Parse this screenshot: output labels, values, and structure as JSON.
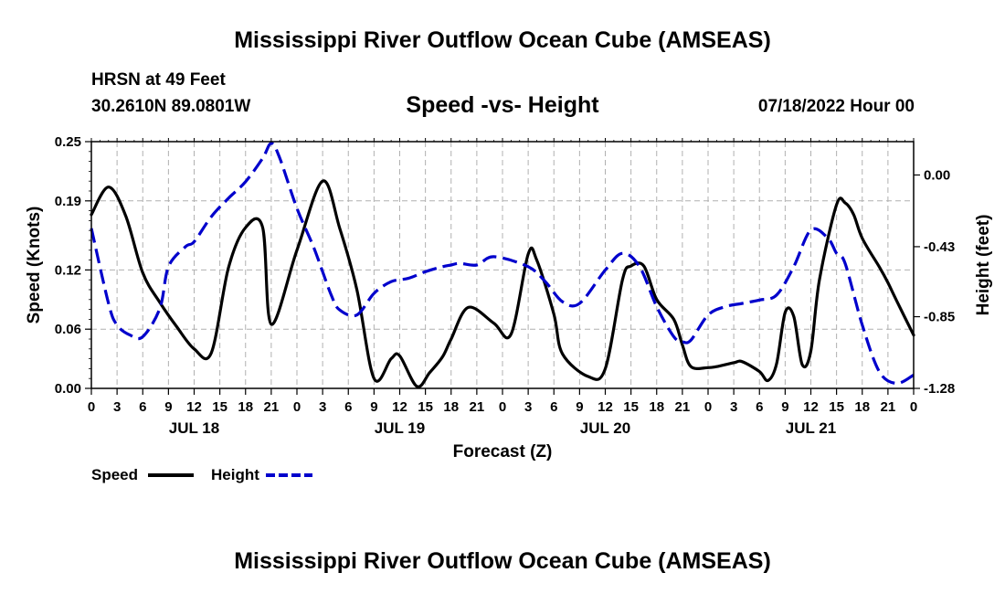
{
  "header": {
    "title": "Mississippi River Outflow Ocean Cube (AMSEAS)",
    "station_name": "HRSN at 49 Feet",
    "station_coords": "30.2610N  89.0801W",
    "subtitle": "Speed -vs- Height",
    "forecast_time": "07/18/2022 Hour 00"
  },
  "footer": {
    "title": "Mississippi River Outflow Ocean Cube (AMSEAS)"
  },
  "colors": {
    "speed": "#000000",
    "height": "#0000cc",
    "grid": "#b0b0b0"
  },
  "chart_data": {
    "type": "line",
    "title": "Speed -vs- Height",
    "xlabel": "Forecast (Z)",
    "ylabel": "Speed (Knots)",
    "y2label": "Height (feet)",
    "xlim": [
      0,
      96
    ],
    "ylim": [
      0,
      0.25
    ],
    "y2lim": [
      -1.28,
      0.2
    ],
    "x_ticks": [
      0,
      3,
      6,
      9,
      12,
      15,
      18,
      21,
      24,
      27,
      30,
      33,
      36,
      39,
      42,
      45,
      48,
      51,
      54,
      57,
      60,
      63,
      66,
      69,
      72,
      75,
      78,
      81,
      84,
      87,
      90,
      93,
      96
    ],
    "x_tick_labels": [
      "0",
      "3",
      "6",
      "9",
      "12",
      "15",
      "18",
      "21",
      "0",
      "3",
      "6",
      "9",
      "12",
      "15",
      "18",
      "21",
      "0",
      "3",
      "6",
      "9",
      "12",
      "15",
      "18",
      "21",
      "0",
      "3",
      "6",
      "9",
      "12",
      "15",
      "18",
      "21",
      "0"
    ],
    "day_labels": [
      {
        "x": 12,
        "label": "JUL 18"
      },
      {
        "x": 36,
        "label": "JUL 19"
      },
      {
        "x": 60,
        "label": "JUL 20"
      },
      {
        "x": 84,
        "label": "JUL 21"
      }
    ],
    "y_ticks": [
      0.0,
      0.06,
      0.12,
      0.19,
      0.25
    ],
    "y_tick_labels": [
      "0.00",
      "0.06",
      "0.12",
      "0.19",
      "0.25"
    ],
    "y2_ticks": [
      0.0,
      -0.43,
      -0.85,
      -1.28
    ],
    "y2_tick_labels": [
      "0.00",
      "-0.43",
      "-0.85",
      "-1.28"
    ],
    "grid": true,
    "legend": [
      {
        "name": "Speed",
        "style": "solid"
      },
      {
        "name": "Height",
        "style": "dashed"
      }
    ],
    "series": [
      {
        "name": "Speed",
        "axis": "left",
        "style": "solid",
        "x": [
          0,
          2,
          4,
          6,
          8,
          10,
          12,
          14,
          16,
          18,
          20,
          21,
          24,
          27,
          29,
          31,
          33,
          35,
          36,
          38,
          39.5,
          41,
          42,
          44,
          47,
          49,
          51,
          52,
          54,
          55,
          58,
          60,
          62,
          63,
          64.5,
          66,
          68,
          69,
          70,
          72,
          73,
          75,
          76,
          78,
          79,
          80,
          81,
          82,
          83,
          84,
          85,
          87,
          88,
          89,
          90,
          92,
          93,
          94,
          96
        ],
        "y": [
          0.176,
          0.204,
          0.175,
          0.117,
          0.087,
          0.062,
          0.04,
          0.036,
          0.122,
          0.163,
          0.163,
          0.065,
          0.14,
          0.21,
          0.162,
          0.1,
          0.01,
          0.03,
          0.033,
          0.002,
          0.016,
          0.032,
          0.05,
          0.082,
          0.066,
          0.055,
          0.136,
          0.13,
          0.075,
          0.035,
          0.012,
          0.02,
          0.11,
          0.124,
          0.124,
          0.09,
          0.07,
          0.044,
          0.022,
          0.021,
          0.022,
          0.026,
          0.027,
          0.017,
          0.008,
          0.025,
          0.077,
          0.073,
          0.024,
          0.038,
          0.11,
          0.186,
          0.188,
          0.176,
          0.152,
          0.123,
          0.107,
          0.089,
          0.054
        ]
      },
      {
        "name": "Height",
        "axis": "right",
        "style": "dashed",
        "x": [
          0,
          2,
          3,
          4.5,
          6,
          8,
          9,
          11,
          12,
          14,
          16,
          18,
          20,
          21,
          22,
          24,
          26,
          28,
          29,
          31,
          33,
          35,
          37,
          39,
          41,
          42,
          43,
          45,
          47,
          51,
          53,
          55,
          57,
          60,
          62,
          64,
          66,
          68,
          69,
          70,
          72,
          74,
          76,
          78,
          80,
          82,
          84,
          86,
          87,
          88,
          90,
          92,
          94,
          96
        ],
        "y": [
          -0.32,
          -0.77,
          -0.9,
          -0.96,
          -0.97,
          -0.8,
          -0.55,
          -0.43,
          -0.4,
          -0.25,
          -0.14,
          -0.04,
          0.1,
          0.19,
          0.1,
          -0.2,
          -0.44,
          -0.72,
          -0.81,
          -0.84,
          -0.71,
          -0.64,
          -0.62,
          -0.58,
          -0.55,
          -0.54,
          -0.53,
          -0.54,
          -0.49,
          -0.55,
          -0.64,
          -0.76,
          -0.77,
          -0.57,
          -0.47,
          -0.55,
          -0.79,
          -0.97,
          -1.0,
          -0.99,
          -0.84,
          -0.79,
          -0.77,
          -0.75,
          -0.72,
          -0.55,
          -0.33,
          -0.38,
          -0.47,
          -0.53,
          -0.9,
          -1.18,
          -1.25,
          -1.2
        ]
      }
    ]
  }
}
